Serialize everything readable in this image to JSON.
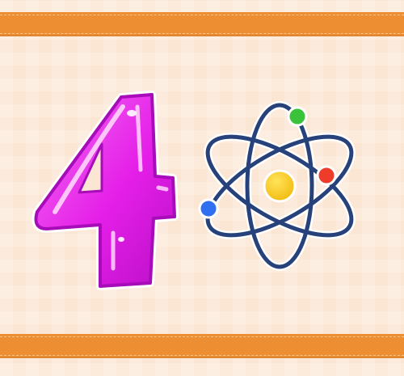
{
  "scene": {
    "numeral": "4",
    "colors": {
      "background": "#fbe6d4",
      "band": "#ee8e33",
      "numeral": "#e51fe8",
      "atom_orbit": "#27427a",
      "nucleus": "#f7c81d",
      "electron_green": "#3ac23b",
      "electron_red": "#ee3b2a",
      "electron_blue": "#2f6ff0"
    },
    "icons": [
      "numeral-four-icon",
      "atom-icon"
    ]
  }
}
